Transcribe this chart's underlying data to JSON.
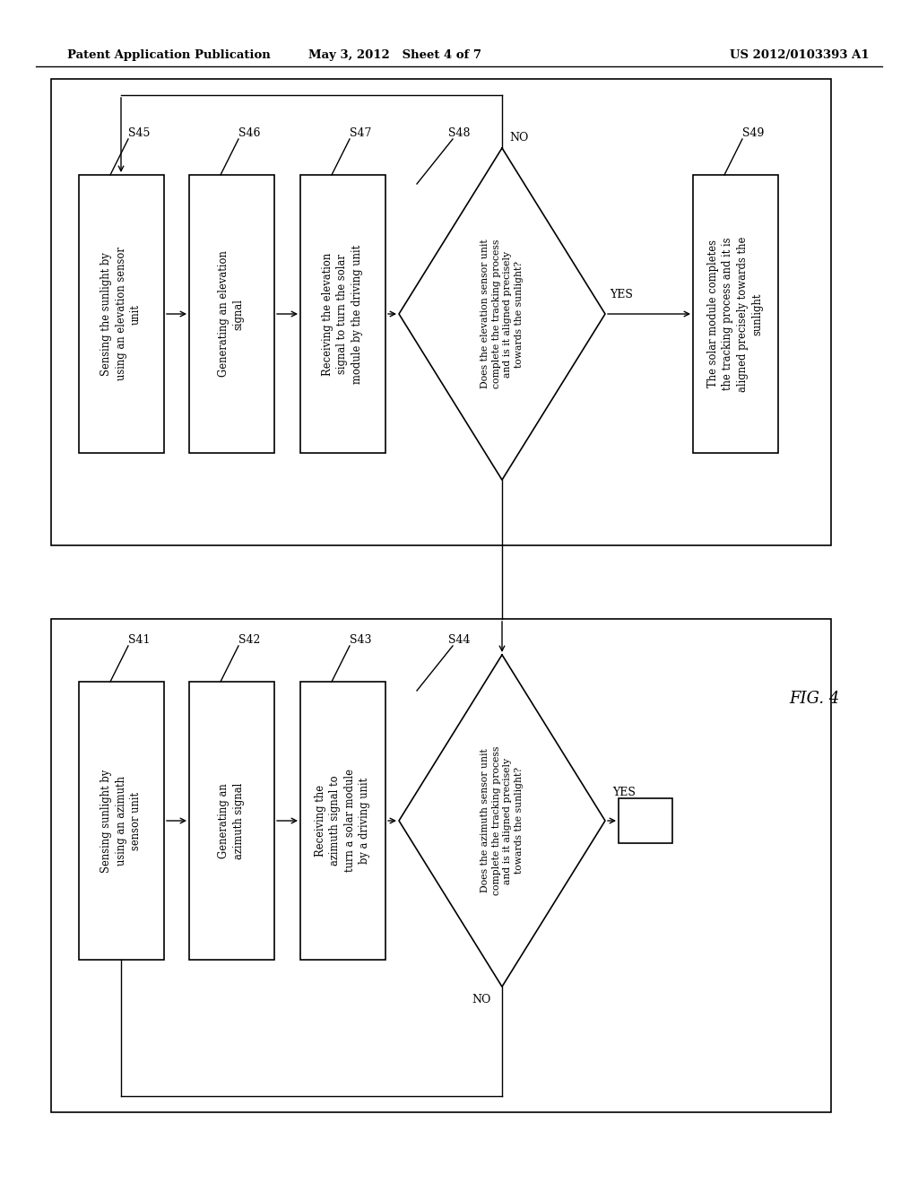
{
  "bg_color": "#ffffff",
  "header_left": "Patent Application Publication",
  "header_mid": "May 3, 2012   Sheet 4 of 7",
  "header_right": "US 2012/0103393 A1",
  "fig_label": "FIG. 4"
}
